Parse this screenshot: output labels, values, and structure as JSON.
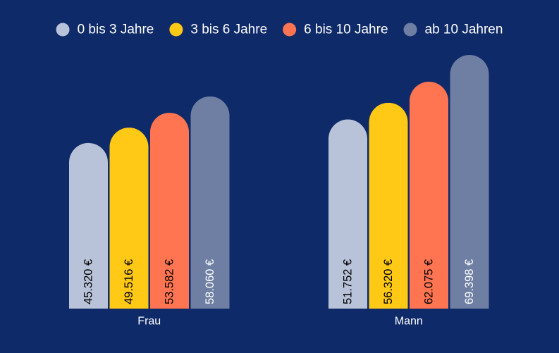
{
  "colors": {
    "background": "#0f2a68",
    "series_0_bis_3": "#b8c2d9",
    "series_3_bis_6": "#ffc915",
    "series_6_bis_10": "#ff7551",
    "series_ab_10": "#6e7fa3",
    "label_dark": "#000000",
    "label_light": "#ffffff",
    "text": "#ffffff"
  },
  "chart_data": {
    "type": "bar",
    "title": "",
    "xlabel": "",
    "ylabel": "",
    "categories": [
      "Frau",
      "Mann"
    ],
    "series": [
      {
        "name": "0 bis 3 Jahre",
        "values": [
          45320,
          51752
        ],
        "labels": [
          "45.320 €",
          "51.752 €"
        ],
        "color": "#b8c2d9",
        "label_color": "#000000"
      },
      {
        "name": "3 bis 6 Jahre",
        "values": [
          49516,
          56320
        ],
        "labels": [
          "49.516 €",
          "56.320 €"
        ],
        "color": "#ffc915",
        "label_color": "#000000"
      },
      {
        "name": "6 bis 10 Jahre",
        "values": [
          53582,
          62075
        ],
        "labels": [
          "53.582 €",
          "62.075 €"
        ],
        "color": "#ff7551",
        "label_color": "#000000"
      },
      {
        "name": "ab 10 Jahren",
        "values": [
          58060,
          69398
        ],
        "labels": [
          "58.060 €",
          "69.398 €"
        ],
        "color": "#6e7fa3",
        "label_color": "#ffffff"
      }
    ],
    "legend": "top-center",
    "grid": false,
    "y_axis_visible": false
  }
}
